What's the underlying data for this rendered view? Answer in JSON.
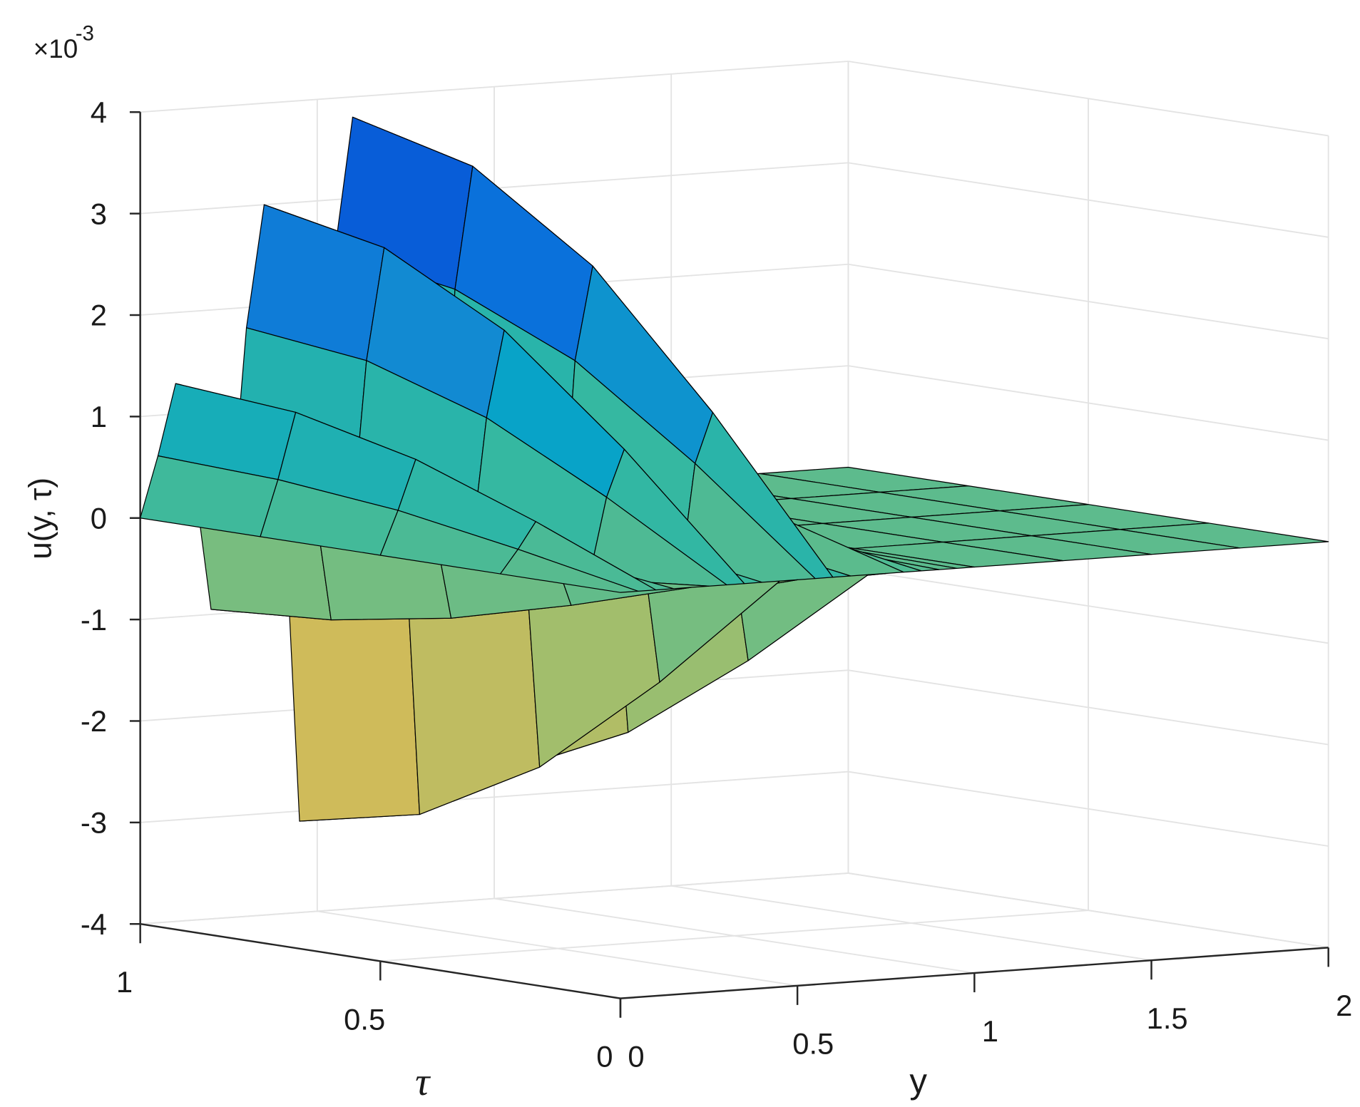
{
  "chart_data": {
    "type": "surface",
    "zlabel": "u(y, τ)",
    "xlabel": "y",
    "ylabel": "τ",
    "zscale_label": "×10",
    "zscale_power": "-3",
    "zlim": [
      -4,
      4
    ],
    "zticks": [
      -4,
      -3,
      -2,
      -1,
      0,
      1,
      2,
      3,
      4
    ],
    "ylim": [
      0,
      2
    ],
    "yticks": [
      0,
      0.5,
      1,
      1.5,
      2
    ],
    "taulim": [
      0,
      1
    ],
    "tauticks": [
      1,
      0.5,
      0
    ],
    "grid": true,
    "edge_color": "#000000",
    "colormap": [
      "#352A87",
      "#0363E1",
      "#1485D4",
      "#06A7C6",
      "#38B99E",
      "#92BF73",
      "#D9BA56",
      "#FCCE2E",
      "#F9FB0E"
    ],
    "y": [
      0,
      0.05,
      0.1,
      0.15,
      0.2,
      0.25,
      0.3,
      0.35,
      0.4,
      0.45,
      0.5,
      0.55,
      0.6,
      0.65,
      0.7,
      0.75,
      0.8,
      0.85,
      0.9,
      0.95,
      1.0,
      1.25,
      1.5,
      1.75,
      2
    ],
    "tau": [
      0,
      0.25,
      0.5,
      0.75,
      1
    ],
    "z": [
      [
        0,
        0,
        0,
        0,
        0,
        0,
        0,
        0,
        0,
        0,
        0,
        0,
        0,
        0,
        0,
        0,
        0,
        0,
        0,
        0,
        0,
        0,
        0,
        0,
        0
      ],
      [
        0,
        0.23,
        0.49,
        0.15,
        -0.36,
        -0.11,
        0.68,
        1.14,
        0.19,
        -1.18,
        -0.38,
        0.95,
        1.44,
        0.19,
        -1.03,
        -0.3,
        0.34,
        0.19,
        0.04,
        0.02,
        0,
        0,
        0,
        0,
        0
      ],
      [
        0,
        0.43,
        0.92,
        0.28,
        -0.67,
        -0.21,
        1.28,
        2.13,
        0.36,
        -2.2,
        -0.71,
        1.78,
        2.7,
        0.36,
        -1.92,
        -0.57,
        0.64,
        0.36,
        0.07,
        0.04,
        0,
        0,
        0,
        0,
        0
      ],
      [
        0,
        0.55,
        1.2,
        0.37,
        -0.87,
        -0.28,
        1.66,
        2.76,
        0.46,
        -2.85,
        -0.92,
        2.3,
        3.5,
        0.46,
        -2.48,
        -0.74,
        0.83,
        0.46,
        0.09,
        0.05,
        0,
        0,
        0,
        0,
        0
      ],
      [
        0,
        0.6,
        1.3,
        0.4,
        -0.95,
        -0.3,
        1.8,
        3.0,
        0.5,
        -3.1,
        -1.0,
        2.5,
        3.8,
        0.5,
        -2.7,
        -0.8,
        0.9,
        0.5,
        0.1,
        0.05,
        0,
        0,
        0,
        0,
        0
      ]
    ]
  }
}
